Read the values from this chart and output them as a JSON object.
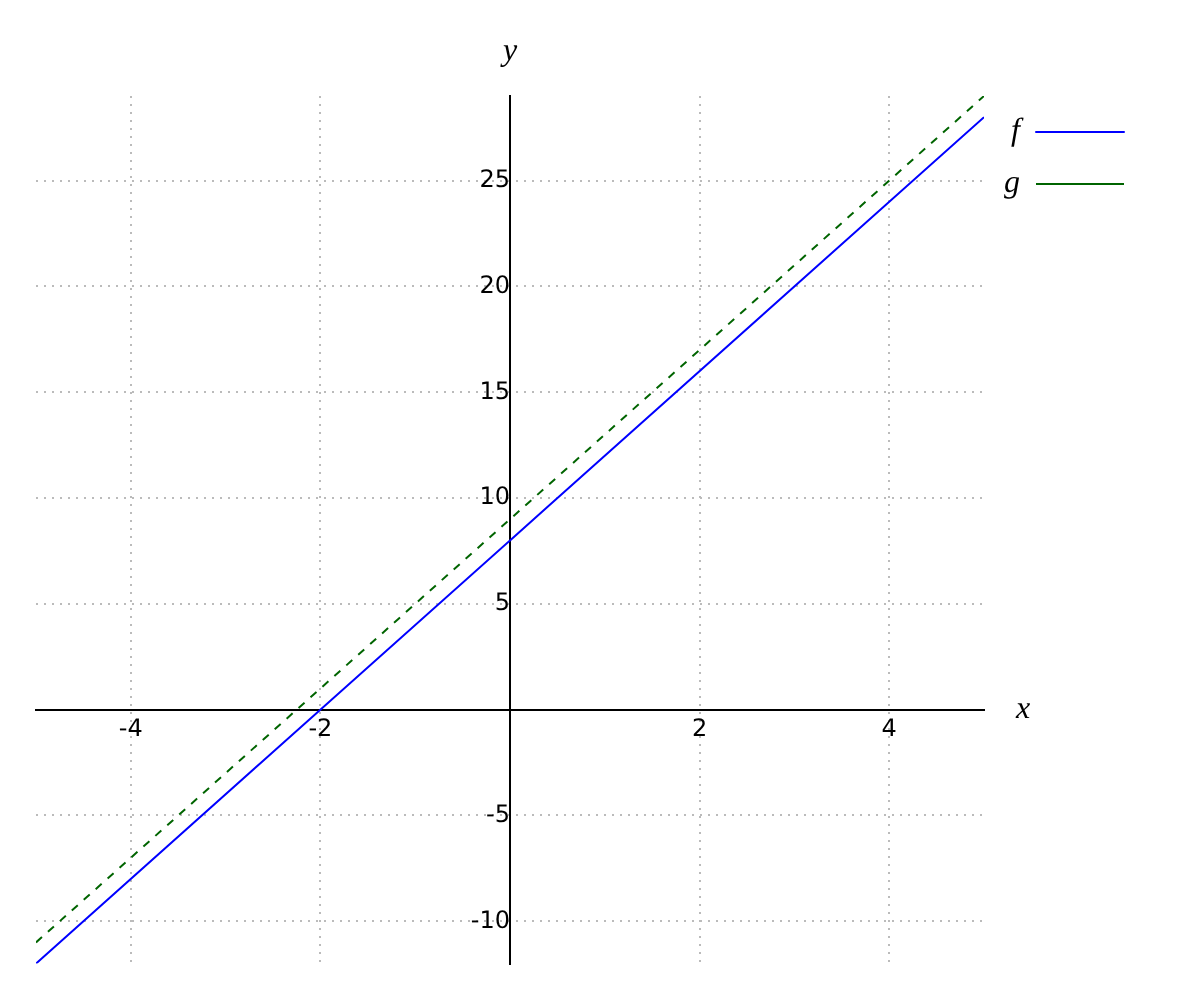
{
  "chart_data": {
    "type": "line",
    "xlabel": "x",
    "ylabel": "y",
    "xlim": [
      -5,
      5
    ],
    "ylim": [
      -12,
      29
    ],
    "xticks": [
      -4,
      -2,
      2,
      4
    ],
    "yticks": [
      -10,
      -5,
      5,
      10,
      15,
      20,
      25
    ],
    "grid": true,
    "legend": "top right",
    "marker": "none",
    "x": [
      -5,
      0,
      5
    ],
    "series": [
      {
        "name": "f",
        "color": "#0000ff",
        "values": [
          -12,
          8,
          28
        ],
        "line_style": "solid"
      },
      {
        "name": "g",
        "color": "#006400",
        "values": [
          -11,
          9,
          29
        ],
        "line_style": "dashed"
      }
    ]
  }
}
